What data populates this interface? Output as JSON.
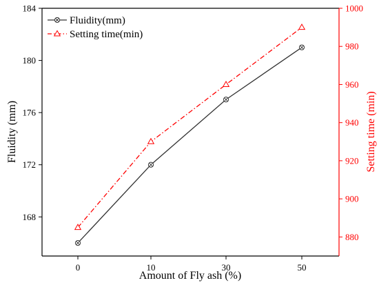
{
  "chart_data": {
    "type": "line",
    "categories": [
      "0",
      "10",
      "30",
      "50"
    ],
    "xlabel": "Amount of Fly ash (%)",
    "y_left": {
      "label": "Fluidity (mm)",
      "lim": [
        165,
        184
      ],
      "ticks": [
        168,
        172,
        176,
        180,
        184
      ],
      "color": "#000000"
    },
    "y_right": {
      "label": "Setting time (min)",
      "lim": [
        870,
        1000
      ],
      "ticks": [
        880,
        900,
        920,
        940,
        960,
        980,
        1000
      ],
      "color": "#ff0000"
    },
    "series": [
      {
        "name": "Fluidity(mm)",
        "axis": "left",
        "values": [
          166,
          172,
          177,
          181
        ],
        "color": "#333333",
        "line_style": "solid",
        "marker": "circle-x"
      },
      {
        "name": "Setting time(min)",
        "axis": "right",
        "values": [
          885,
          930,
          960,
          990
        ],
        "color": "#ff0000",
        "line_style": "dash-dot",
        "marker": "triangle"
      }
    ],
    "legend_position": "top-left",
    "grid": false
  }
}
